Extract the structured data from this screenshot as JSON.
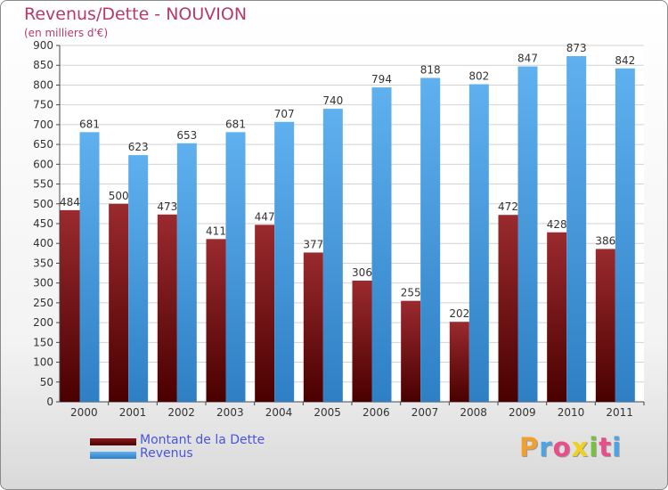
{
  "title": "Revenus/Dette - NOUVION",
  "subtitle": "(en milliers d'€)",
  "colors": {
    "debt": "#7a0f10",
    "revenue": "#4fa3e3",
    "title": "#b5396f",
    "legend_text": "#4a55d8"
  },
  "chart_data": {
    "type": "bar",
    "categories": [
      "2000",
      "2001",
      "2002",
      "2003",
      "2004",
      "2005",
      "2006",
      "2007",
      "2008",
      "2009",
      "2010",
      "2011"
    ],
    "series": [
      {
        "name": "Montant de la Dette",
        "values": [
          484,
          500,
          473,
          411,
          447,
          377,
          306,
          255,
          202,
          472,
          428,
          386
        ]
      },
      {
        "name": "Revenus",
        "values": [
          681,
          623,
          653,
          681,
          707,
          740,
          794,
          818,
          802,
          847,
          873,
          842
        ]
      }
    ],
    "yticks": [
      "0",
      "50",
      "100",
      "150",
      "200",
      "250",
      "300",
      "350",
      "400",
      "450",
      "500",
      "550",
      "600",
      "650",
      "700",
      "750",
      "800",
      "850",
      "900"
    ],
    "ylim": [
      0,
      900
    ],
    "grid": true,
    "legend_position": "bottom-left"
  },
  "legend": [
    {
      "label": "Montant de la Dette"
    },
    {
      "label": "Revenus"
    }
  ],
  "logo": {
    "letters": [
      "P",
      "r",
      "o",
      "x",
      "i",
      "t",
      "i"
    ],
    "colors": [
      "#f0a030",
      "#4fa3e3",
      "#e84e8a",
      "#f0d020",
      "#78c040",
      "#e84e8a",
      "#4fa3e3"
    ]
  }
}
